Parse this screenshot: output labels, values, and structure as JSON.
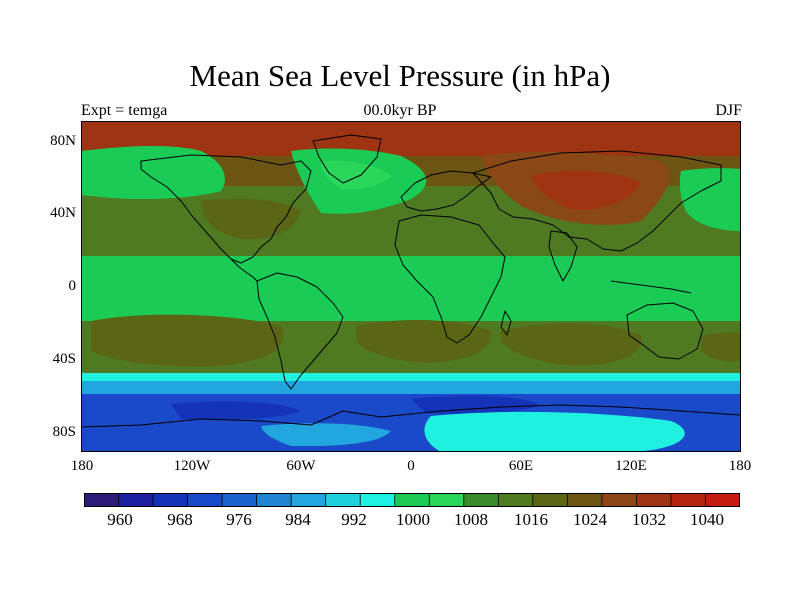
{
  "title": "Mean Sea Level Pressure (in hPa)",
  "experiment": "Expt = temga",
  "period": "00.0kyr BP",
  "season": "DJF",
  "lat_labels": [
    {
      "lat": 80,
      "label": "80N"
    },
    {
      "lat": 40,
      "label": "40N"
    },
    {
      "lat": 0,
      "label": "0"
    },
    {
      "lat": -40,
      "label": "40S"
    },
    {
      "lat": -80,
      "label": "80S"
    }
  ],
  "lon_labels": [
    {
      "lon": -180,
      "label": "180"
    },
    {
      "lon": -120,
      "label": "120W"
    },
    {
      "lon": -60,
      "label": "60W"
    },
    {
      "lon": 0,
      "label": "0"
    },
    {
      "lon": 60,
      "label": "60E"
    },
    {
      "lon": 120,
      "label": "120E"
    },
    {
      "lon": 180,
      "label": "180"
    }
  ],
  "colorbar": {
    "colors": [
      "#2d1b7a",
      "#1c1fa0",
      "#1533b8",
      "#1a49c9",
      "#1a63cf",
      "#1f84d2",
      "#22a6df",
      "#20d0dd",
      "#20f0df",
      "#1acc55",
      "#2ad65a",
      "#3c8a2a",
      "#4f7a22",
      "#5b6614",
      "#6c5412",
      "#8a4816",
      "#9e3412",
      "#b42410",
      "#c41c12"
    ],
    "labels": [
      "960",
      "968",
      "976",
      "984",
      "992",
      "1000",
      "1008",
      "1016",
      "1024",
      "1032",
      "1040"
    ]
  },
  "palette": {
    "deep_blue": "#1533b8",
    "blue": "#1a63cf",
    "light_blue": "#22a6df",
    "cyan": "#20f0df",
    "green": "#1acc55",
    "olive": "#5b6614",
    "dark_olive": "#4f7a22",
    "brown": "#8a4816",
    "red_brown": "#9e3412",
    "coast": "#000000"
  }
}
